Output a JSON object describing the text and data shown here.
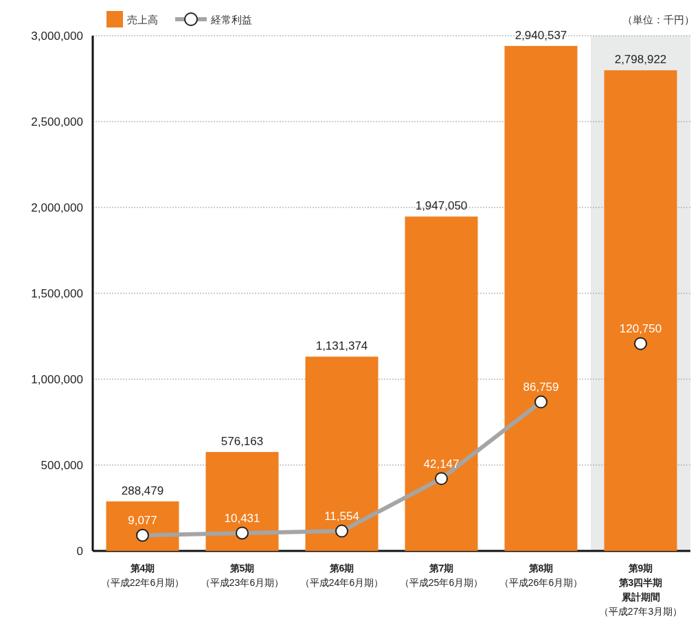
{
  "chart_data": {
    "type": "bar",
    "categories": [
      "第4期（平成22年6月期）",
      "第5期（平成23年6月期）",
      "第6期（平成24年6月期）",
      "第7期（平成25年6月期）",
      "第8期（平成26年6月期）",
      "第9期第3四半期累計期間（平成27年3月期）"
    ],
    "series": [
      {
        "name": "売上高",
        "color": "#f07f1f",
        "values": [
          288479,
          576163,
          1131374,
          1947050,
          2940537,
          2798922
        ],
        "value_labels": [
          "288,479",
          "576,163",
          "1,131,374",
          "1,947,050",
          "2,940,537",
          "2,798,922"
        ]
      },
      {
        "name": "経常利益",
        "type": "line",
        "axis": "y2",
        "color": "#a5a5a5",
        "marker": "circle",
        "values": [
          9077,
          10431,
          11554,
          42147,
          86759,
          null
        ],
        "value_labels": [
          "9,077",
          "10,431",
          "11,554",
          "42,147",
          "86,759",
          null
        ]
      },
      {
        "type": "scatter",
        "axis": "y2",
        "color": "#ffffff",
        "marker": "circle",
        "values": [
          null,
          null,
          null,
          null,
          null,
          120750
        ],
        "value_labels": [
          null,
          null,
          null,
          null,
          null,
          "120,750"
        ]
      }
    ],
    "ylim": [
      0,
      3000000
    ],
    "yticks": [
      0,
      {
        "value": 500000,
        "label": "500,000"
      },
      {
        "value": 1000000,
        "label": "1,000,000"
      },
      {
        "value": 1500000,
        "label": "1,500,000"
      },
      {
        "value": 2000000,
        "label": "2,000,000"
      },
      {
        "value": 2500000,
        "label": "2,500,000"
      },
      {
        "value": 3000000,
        "label": "3,000,000"
      }
    ],
    "y2lim": [
      0,
      300000
    ],
    "grid": "y",
    "legend": "top left",
    "annotations": [
      "（単位：千円）"
    ],
    "bands": [
      {
        "axis": "x",
        "from": "第9期第3四半期累計期間（平成27年3月期）",
        "to": "第9期第3四半期累計期間（平成27年3月期）",
        "color": "#e9ebeb"
      }
    ]
  }
}
